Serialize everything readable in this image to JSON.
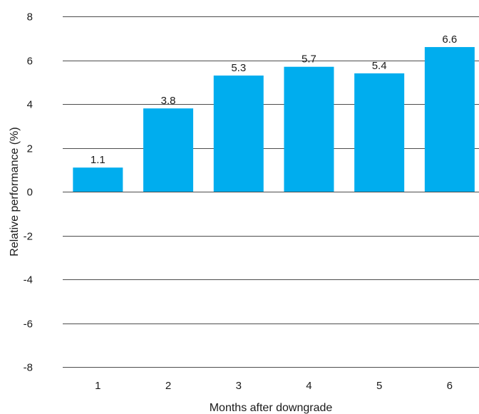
{
  "chart_data": {
    "type": "bar",
    "categories": [
      "1",
      "2",
      "3",
      "4",
      "5",
      "6"
    ],
    "values": [
      1.1,
      3.8,
      5.3,
      5.7,
      5.4,
      6.6
    ],
    "value_labels": [
      "1.1",
      "3.8",
      "5.3",
      "5.7",
      "5.4",
      "6.6"
    ],
    "title": "",
    "xlabel": "Months after downgrade",
    "ylabel": "Relative performance (%)",
    "ylim": [
      -8,
      8
    ],
    "yticks": [
      "8",
      "6",
      "4",
      "2",
      "0",
      "-2",
      "-4",
      "-6",
      "-8"
    ],
    "grid": true,
    "legend": "none",
    "colors": {
      "bar": "#00adee",
      "grid": "#4d4d4d",
      "text": "#1a1a1a"
    }
  }
}
